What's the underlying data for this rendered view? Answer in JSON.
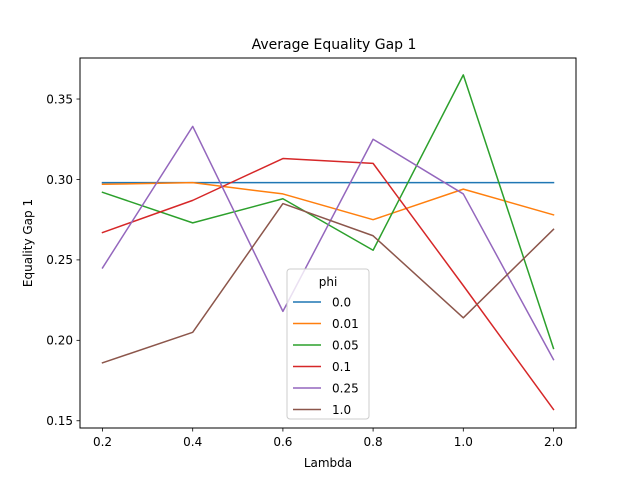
{
  "chart_data": {
    "type": "line",
    "title": "Average Equality Gap 1",
    "xlabel": "Lambda",
    "ylabel": "Equality Gap 1",
    "categories": [
      "0.2",
      "0.4",
      "0.6",
      "0.8",
      "1.0",
      "2.0"
    ],
    "ylim": [
      0.1455,
      0.3755
    ],
    "yticks": [
      "0.15",
      "0.20",
      "0.25",
      "0.30",
      "0.35"
    ],
    "ytick_values": [
      0.15,
      0.2,
      0.25,
      0.3,
      0.35
    ],
    "grid": false,
    "legend": {
      "title": "phi",
      "placement": "lower-center"
    },
    "series": [
      {
        "name": "0.0",
        "color": "#1f77b4",
        "values": [
          0.298,
          0.298,
          0.298,
          0.298,
          0.298,
          0.298
        ]
      },
      {
        "name": "0.01",
        "color": "#ff7f0e",
        "values": [
          0.297,
          0.298,
          0.291,
          0.275,
          0.294,
          0.278
        ]
      },
      {
        "name": "0.05",
        "color": "#2ca02c",
        "values": [
          0.292,
          0.273,
          0.288,
          0.256,
          0.365,
          0.195
        ]
      },
      {
        "name": "0.1",
        "color": "#d62728",
        "values": [
          0.267,
          0.287,
          0.313,
          0.31,
          0.234,
          0.157
        ]
      },
      {
        "name": "0.25",
        "color": "#9467bd",
        "values": [
          0.245,
          0.333,
          0.218,
          0.325,
          0.291,
          0.188
        ]
      },
      {
        "name": "1.0",
        "color": "#8c564b",
        "values": [
          0.186,
          0.205,
          0.285,
          0.265,
          0.214,
          0.269
        ]
      }
    ]
  }
}
